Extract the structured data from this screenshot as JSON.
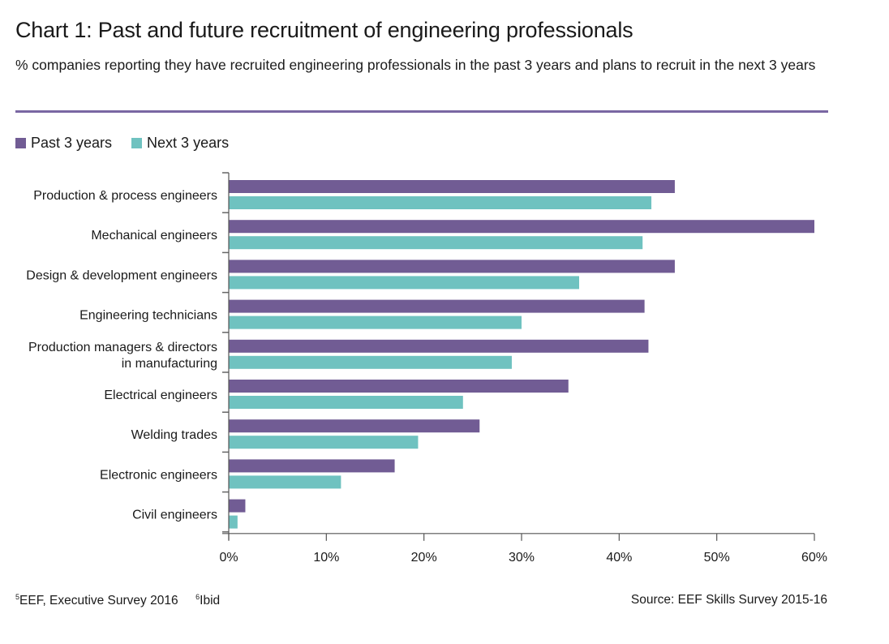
{
  "header": {
    "title": "Chart 1: Past and future recruitment of engineering professionals",
    "subtitle": "% companies reporting they have recruited engineering professionals in the past 3 years and plans to recruit in the next 3 years"
  },
  "colors": {
    "past": "#715c94",
    "next": "#6fc2c0",
    "rule": "#7a67a3",
    "axis": "#555555"
  },
  "footer": {
    "footnote1_mark": "5",
    "footnote1_text": "EEF, Executive Survey 2016",
    "footnote2_mark": "6",
    "footnote2_text": "Ibid",
    "source": "Source: EEF Skills Survey 2015-16"
  },
  "chart_data": {
    "type": "bar",
    "orientation": "horizontal",
    "title": "Chart 1: Past and future recruitment of engineering professionals",
    "subtitle": "% companies reporting they have recruited engineering professionals in the past 3 years and plans to recruit in the next 3 years",
    "xlabel": "",
    "ylabel": "",
    "xlim": [
      0,
      60
    ],
    "xticks": [
      0,
      10,
      20,
      30,
      40,
      50,
      60
    ],
    "xtick_labels": [
      "0%",
      "10%",
      "20%",
      "30%",
      "40%",
      "50%",
      "60%"
    ],
    "grid": false,
    "legend_position": "top-left",
    "categories": [
      [
        "Production & process engineers"
      ],
      [
        "Mechanical engineers"
      ],
      [
        "Design & development engineers"
      ],
      [
        "Engineering technicians"
      ],
      [
        "Production managers & directors",
        "in manufacturing"
      ],
      [
        "Electrical engineers"
      ],
      [
        "Welding trades"
      ],
      [
        "Electronic engineers"
      ],
      [
        "Civil engineers"
      ]
    ],
    "series": [
      {
        "name": "Past 3 years",
        "color": "#715c94",
        "values": [
          45.7,
          60.0,
          45.7,
          42.6,
          43.0,
          34.8,
          25.7,
          17.0,
          1.7
        ]
      },
      {
        "name": "Next 3 years",
        "color": "#6fc2c0",
        "values": [
          43.3,
          42.4,
          35.9,
          30.0,
          29.0,
          24.0,
          19.4,
          11.5,
          0.9
        ]
      }
    ]
  }
}
